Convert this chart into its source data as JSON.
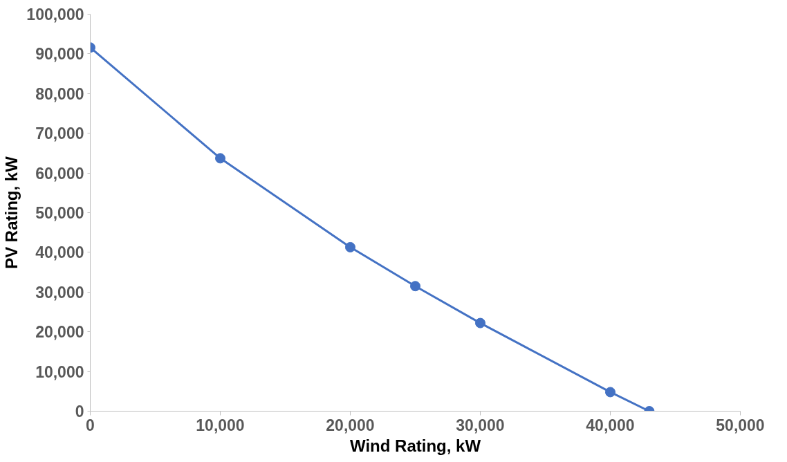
{
  "chart_data": {
    "type": "line",
    "xlabel": "Wind Rating, kW",
    "ylabel": "PV Rating, kW",
    "x": [
      0,
      10000,
      20000,
      25000,
      30000,
      40000,
      43000
    ],
    "series": [
      {
        "color": "#4472c4",
        "values": [
          91600,
          63700,
          41300,
          31500,
          22200,
          4800,
          0
        ]
      }
    ],
    "xlim": [
      0,
      50000
    ],
    "xticks": [
      {
        "value": 0,
        "label": "0"
      },
      {
        "value": 10000,
        "label": "10,000"
      },
      {
        "value": 20000,
        "label": "20,000"
      },
      {
        "value": 30000,
        "label": "30,000"
      },
      {
        "value": 40000,
        "label": "40,000"
      },
      {
        "value": 50000,
        "label": "50,000"
      }
    ],
    "ylim": [
      0,
      100000
    ],
    "yticks": [
      {
        "value": 0,
        "label": "0"
      },
      {
        "value": 10000,
        "label": "10,000"
      },
      {
        "value": 20000,
        "label": "20,000"
      },
      {
        "value": 30000,
        "label": "30,000"
      },
      {
        "value": 40000,
        "label": "40,000"
      },
      {
        "value": 50000,
        "label": "50,000"
      },
      {
        "value": 60000,
        "label": "60,000"
      },
      {
        "value": 70000,
        "label": "70,000"
      },
      {
        "value": 80000,
        "label": "80,000"
      },
      {
        "value": 90000,
        "label": "90,000"
      },
      {
        "value": 100000,
        "label": "100,000"
      }
    ],
    "grid": false,
    "marker": "circle",
    "line_style": "solid"
  }
}
